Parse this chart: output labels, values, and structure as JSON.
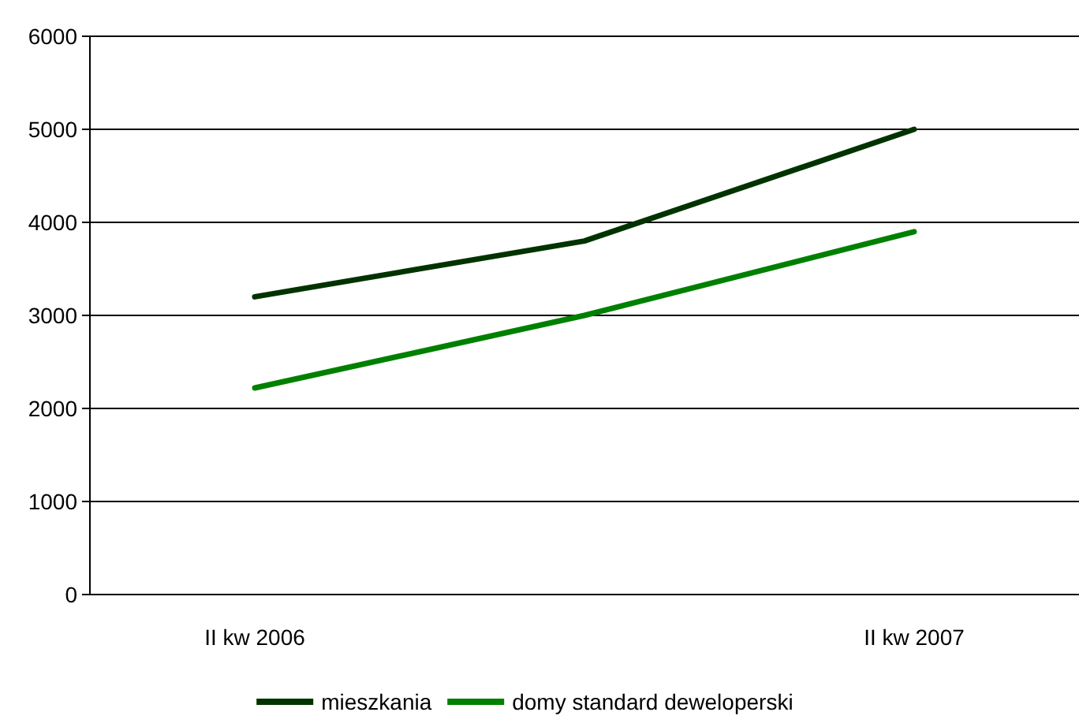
{
  "chart_data": {
    "type": "line",
    "categories": [
      "II kw 2006",
      null,
      "II kw 2007"
    ],
    "series": [
      {
        "name": "mieszkania",
        "color": "#003300",
        "values": [
          3200,
          3800,
          5000
        ]
      },
      {
        "name": "domy standard deweloperski",
        "color": "#008000",
        "values": [
          2220,
          3000,
          3900
        ]
      }
    ],
    "ylim": [
      0,
      6000
    ],
    "yticks": [
      0,
      1000,
      2000,
      3000,
      4000,
      5000,
      6000
    ],
    "grid": "y",
    "legend": "bottom",
    "marker": "none",
    "line_style": "solid"
  }
}
